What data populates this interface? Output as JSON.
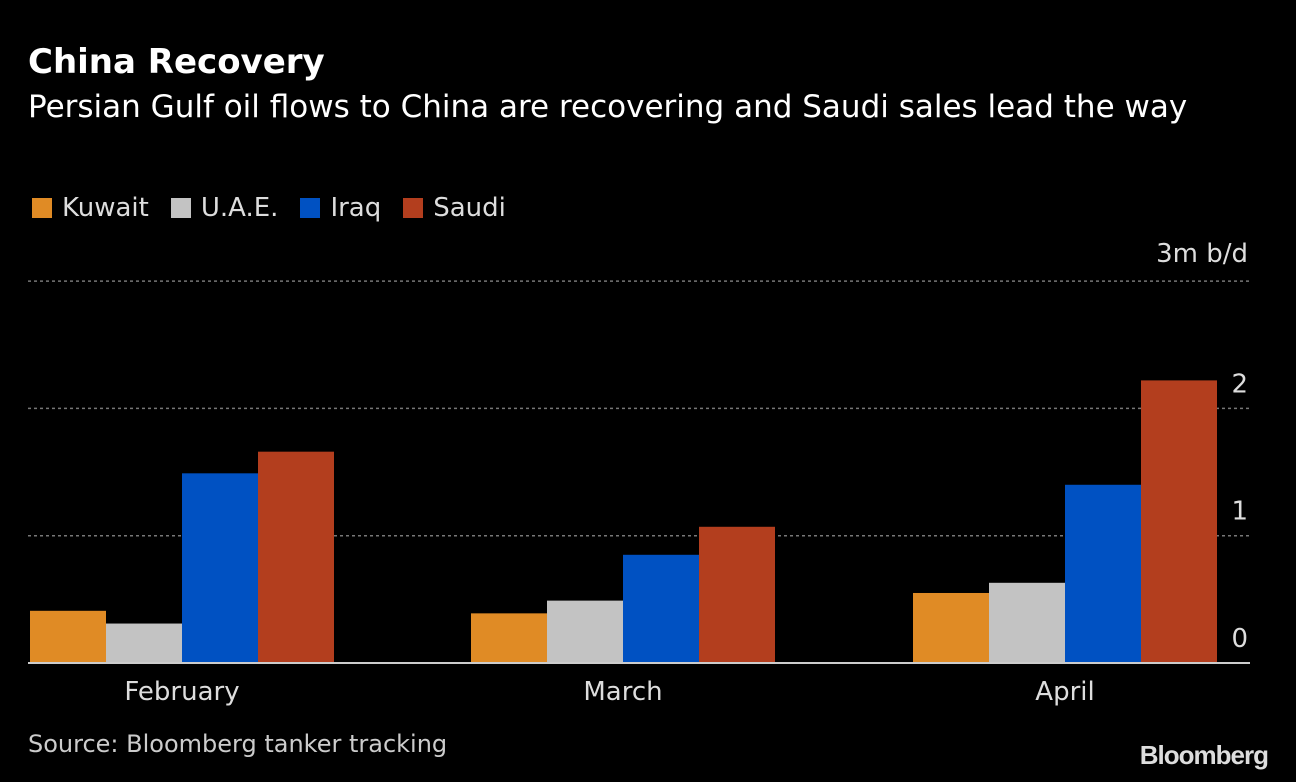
{
  "chart_data": {
    "type": "bar",
    "title": "China Recovery",
    "subtitle": "Persian Gulf oil flows to China are recovering and Saudi sales lead the way",
    "unit_label": "3m b/d",
    "categories": [
      "February",
      "March",
      "April"
    ],
    "series": [
      {
        "name": "Kuwait",
        "color": "#e08b25",
        "values": [
          0.41,
          0.39,
          0.55
        ]
      },
      {
        "name": "U.A.E.",
        "color": "#c3c3c3",
        "values": [
          0.31,
          0.49,
          0.63
        ]
      },
      {
        "name": "Iraq",
        "color": "#0051c2",
        "values": [
          1.49,
          0.85,
          1.4
        ]
      },
      {
        "name": "Saudi",
        "color": "#b33e1e",
        "values": [
          1.66,
          1.07,
          2.22
        ]
      }
    ],
    "yticks": [
      "0",
      "1",
      "2"
    ],
    "ylim": [
      0,
      3
    ],
    "grid": true,
    "legend_position": "top-left",
    "source": "Source: Bloomberg tanker tracking",
    "logo": "Bloomberg"
  }
}
